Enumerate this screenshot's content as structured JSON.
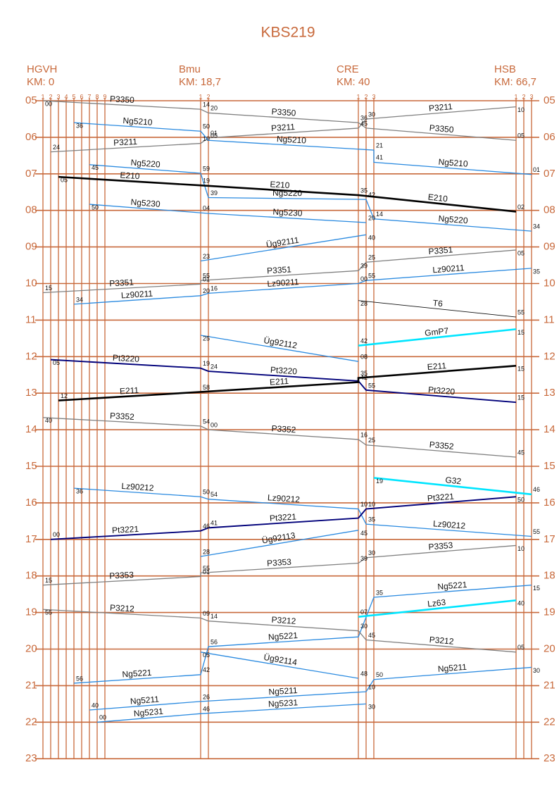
{
  "title": "KBS219",
  "hours": [
    "05",
    "06",
    "07",
    "08",
    "09",
    "10",
    "11",
    "12",
    "13",
    "14",
    "15",
    "16",
    "17",
    "18",
    "19",
    "20",
    "21",
    "22",
    "23"
  ],
  "stations": [
    {
      "name": "HGVH",
      "km": "KM: 0",
      "tracks": [
        "1",
        "2",
        "3",
        "4",
        "5",
        "6",
        "7",
        "8",
        "9"
      ]
    },
    {
      "name": "Bmu",
      "km": "KM: 18,7",
      "tracks": [
        "1",
        "2"
      ]
    },
    {
      "name": "CRE",
      "km": "KM: 40",
      "tracks": [
        "1",
        "2",
        "3"
      ]
    },
    {
      "name": "HSB",
      "km": "KM: 66,7",
      "tracks": [
        "1",
        "2",
        "3"
      ]
    }
  ],
  "trains": [
    {
      "name": "P3350",
      "color": "#808080",
      "points": [
        {
          "s": 0,
          "tr": 0,
          "h": 5,
          "m": 0,
          "label": "00"
        },
        {
          "s": 1,
          "tr": 0,
          "h": 5,
          "m": 14,
          "label": "14"
        },
        {
          "s": 1,
          "tr": 1,
          "h": 5,
          "m": 20,
          "label": "20"
        },
        {
          "s": 2,
          "tr": 0,
          "h": 5,
          "m": 36,
          "label": "36"
        },
        {
          "s": 2,
          "tr": 1,
          "h": 5,
          "m": 45
        },
        {
          "s": 3,
          "tr": 0,
          "h": 6,
          "m": 5,
          "label": "05"
        }
      ]
    },
    {
      "name": "P3211",
      "color": "#808080",
      "points": [
        {
          "s": 3,
          "tr": 0,
          "h": 5,
          "m": 10,
          "label": "10"
        },
        {
          "s": 2,
          "tr": 1,
          "h": 5,
          "m": 30,
          "label": "30"
        },
        {
          "s": 2,
          "tr": 0,
          "h": 5,
          "m": 45,
          "label": "45"
        },
        {
          "s": 1,
          "tr": 1,
          "h": 6,
          "m": 1,
          "label": "01"
        },
        {
          "s": 1,
          "tr": 0,
          "h": 6,
          "m": 10,
          "label": "10"
        },
        {
          "s": 0,
          "tr": 1,
          "h": 6,
          "m": 24,
          "label": "24"
        }
      ]
    },
    {
      "name": "Ng5210",
      "color": "#2a8ae0",
      "points": [
        {
          "s": 0,
          "tr": 4,
          "h": 5,
          "m": 36,
          "label": "36"
        },
        {
          "s": 1,
          "tr": 0,
          "h": 5,
          "m": 50,
          "label": "50"
        },
        {
          "s": 1,
          "tr": 1,
          "h": 6,
          "m": 5,
          "label": "05"
        },
        {
          "s": 2,
          "tr": 2,
          "h": 6,
          "m": 21,
          "label": "21"
        },
        {
          "s": 2,
          "tr": 2,
          "h": 6,
          "m": 41,
          "label": "41"
        },
        {
          "s": 3,
          "tr": 2,
          "h": 7,
          "m": 1,
          "label": "01"
        }
      ]
    },
    {
      "name": "Ng5220",
      "color": "#2a8ae0",
      "points": [
        {
          "s": 0,
          "tr": 6,
          "h": 6,
          "m": 45,
          "label": "45"
        },
        {
          "s": 1,
          "tr": 0,
          "h": 6,
          "m": 59,
          "label": "59"
        },
        {
          "s": 1,
          "tr": 1,
          "h": 7,
          "m": 39,
          "label": "39"
        },
        {
          "s": 2,
          "tr": 1,
          "h": 7,
          "m": 42,
          "label": "42"
        },
        {
          "s": 2,
          "tr": 2,
          "h": 8,
          "m": 14,
          "label": "14"
        },
        {
          "s": 3,
          "tr": 2,
          "h": 8,
          "m": 34,
          "label": "34"
        }
      ]
    },
    {
      "name": "E210",
      "color": "#000000",
      "points": [
        {
          "s": 0,
          "tr": 2,
          "h": 7,
          "m": 5,
          "label": "05"
        },
        {
          "s": 1,
          "tr": 0,
          "h": 7,
          "m": 19,
          "label": "19"
        },
        {
          "s": 2,
          "tr": 0,
          "h": 7,
          "m": 35,
          "label": "35"
        },
        {
          "s": 3,
          "tr": 0,
          "h": 8,
          "m": 2,
          "label": "02"
        }
      ]
    },
    {
      "name": "Ng5230",
      "color": "#2a8ae0",
      "points": [
        {
          "s": 0,
          "tr": 6,
          "h": 7,
          "m": 50,
          "label": "50"
        },
        {
          "s": 1,
          "tr": 0,
          "h": 8,
          "m": 4,
          "label": "04"
        },
        {
          "s": 1,
          "tr": 1,
          "h": 8,
          "m": 5
        },
        {
          "s": 2,
          "tr": 1,
          "h": 8,
          "m": 20,
          "label": "20"
        }
      ]
    },
    {
      "name": "Üg92111",
      "color": "#2a8ae0",
      "points": [
        {
          "s": 2,
          "tr": 1,
          "h": 8,
          "m": 40,
          "label": "40"
        },
        {
          "s": 1,
          "tr": 0,
          "h": 9,
          "m": 23,
          "label": "23"
        }
      ]
    },
    {
      "name": "P3351",
      "color": "#808080",
      "points": [
        {
          "s": 3,
          "tr": 0,
          "h": 9,
          "m": 5,
          "label": "05"
        },
        {
          "s": 2,
          "tr": 1,
          "h": 9,
          "m": 25,
          "label": "25"
        },
        {
          "s": 2,
          "tr": 0,
          "h": 9,
          "m": 39,
          "label": "39"
        },
        {
          "s": 1,
          "tr": 0,
          "h": 9,
          "m": 55,
          "label": "55"
        },
        {
          "s": 1,
          "tr": 0,
          "h": 10,
          "m": 1,
          "label": "01"
        },
        {
          "s": 0,
          "tr": 0,
          "h": 10,
          "m": 15,
          "label": "15"
        }
      ]
    },
    {
      "name": "Lz90211",
      "color": "#2a8ae0",
      "points": [
        {
          "s": 3,
          "tr": 2,
          "h": 9,
          "m": 35,
          "label": "35"
        },
        {
          "s": 2,
          "tr": 1,
          "h": 9,
          "m": 55,
          "label": "55"
        },
        {
          "s": 2,
          "tr": 0,
          "h": 10,
          "m": 0,
          "label": "00"
        },
        {
          "s": 1,
          "tr": 1,
          "h": 10,
          "m": 16,
          "label": "16"
        },
        {
          "s": 1,
          "tr": 0,
          "h": 10,
          "m": 20,
          "label": "20"
        },
        {
          "s": 0,
          "tr": 4,
          "h": 10,
          "m": 34,
          "label": "34"
        }
      ]
    },
    {
      "name": "T6",
      "color": "#111111",
      "points": [
        {
          "s": 2,
          "tr": 0,
          "h": 10,
          "m": 28,
          "label": "28"
        },
        {
          "s": 3,
          "tr": 0,
          "h": 10,
          "m": 55,
          "label": "55"
        }
      ]
    },
    {
      "name": "Üg92112",
      "color": "#2a8ae0",
      "points": [
        {
          "s": 1,
          "tr": 0,
          "h": 11,
          "m": 25,
          "label": "25"
        },
        {
          "s": 2,
          "tr": 0,
          "h": 12,
          "m": 8,
          "label": "08"
        }
      ]
    },
    {
      "name": "GmP7",
      "color": "#00e5ff",
      "points": [
        {
          "s": 3,
          "tr": 0,
          "h": 11,
          "m": 15,
          "label": "15"
        },
        {
          "s": 2,
          "tr": 0,
          "h": 11,
          "m": 42,
          "label": "42"
        }
      ]
    },
    {
      "name": "Pt3220",
      "color": "#00007a",
      "points": [
        {
          "s": 0,
          "tr": 1,
          "h": 12,
          "m": 5,
          "label": "05"
        },
        {
          "s": 1,
          "tr": 0,
          "h": 12,
          "m": 19,
          "label": "19"
        },
        {
          "s": 1,
          "tr": 1,
          "h": 12,
          "m": 24,
          "label": "24"
        },
        {
          "s": 2,
          "tr": 0,
          "h": 12,
          "m": 40
        },
        {
          "s": 2,
          "tr": 1,
          "h": 12,
          "m": 55,
          "label": "55"
        },
        {
          "s": 3,
          "tr": 0,
          "h": 13,
          "m": 15,
          "label": "15"
        }
      ]
    },
    {
      "name": "E211",
      "color": "#000000",
      "points": [
        {
          "s": 3,
          "tr": 0,
          "h": 12,
          "m": 15,
          "label": "15"
        },
        {
          "s": 2,
          "tr": 0,
          "h": 12,
          "m": 35,
          "label": "35"
        },
        {
          "s": 2,
          "tr": 0,
          "h": 12,
          "m": 42,
          "label": "42"
        },
        {
          "s": 1,
          "tr": 0,
          "h": 12,
          "m": 58,
          "label": "58"
        },
        {
          "s": 0,
          "tr": 2,
          "h": 13,
          "m": 12,
          "label": "12"
        }
      ]
    },
    {
      "name": "P3352",
      "color": "#808080",
      "points": [
        {
          "s": 0,
          "tr": 0,
          "h": 13,
          "m": 40,
          "label": "40"
        },
        {
          "s": 1,
          "tr": 0,
          "h": 13,
          "m": 54,
          "label": "54"
        },
        {
          "s": 1,
          "tr": 1,
          "h": 14,
          "m": 0,
          "label": "00"
        },
        {
          "s": 2,
          "tr": 0,
          "h": 14,
          "m": 16,
          "label": "16"
        },
        {
          "s": 2,
          "tr": 1,
          "h": 14,
          "m": 25,
          "label": "25"
        },
        {
          "s": 3,
          "tr": 0,
          "h": 14,
          "m": 45,
          "label": "45"
        }
      ]
    },
    {
      "name": "G32",
      "color": "#00e5ff",
      "points": [
        {
          "s": 2,
          "tr": 2,
          "h": 15,
          "m": 19,
          "label": "19"
        },
        {
          "s": 3,
          "tr": 2,
          "h": 15,
          "m": 46,
          "label": "46"
        }
      ]
    },
    {
      "name": "Lz90212",
      "color": "#2a8ae0",
      "points": [
        {
          "s": 0,
          "tr": 4,
          "h": 15,
          "m": 36,
          "label": "36"
        },
        {
          "s": 1,
          "tr": 0,
          "h": 15,
          "m": 50,
          "label": "50"
        },
        {
          "s": 1,
          "tr": 1,
          "h": 15,
          "m": 54,
          "label": "54"
        },
        {
          "s": 2,
          "tr": 0,
          "h": 16,
          "m": 10,
          "label": "10"
        },
        {
          "s": 2,
          "tr": 1,
          "h": 16,
          "m": 35,
          "label": "35"
        },
        {
          "s": 3,
          "tr": 2,
          "h": 16,
          "m": 55,
          "label": "55"
        }
      ]
    },
    {
      "name": "Pt3221",
      "color": "#00007a",
      "points": [
        {
          "s": 3,
          "tr": 0,
          "h": 15,
          "m": 50,
          "label": "50"
        },
        {
          "s": 2,
          "tr": 1,
          "h": 16,
          "m": 10,
          "label": "10"
        },
        {
          "s": 2,
          "tr": 0,
          "h": 16,
          "m": 25
        },
        {
          "s": 1,
          "tr": 1,
          "h": 16,
          "m": 41,
          "label": "41"
        },
        {
          "s": 1,
          "tr": 0,
          "h": 16,
          "m": 46,
          "label": "46"
        },
        {
          "s": 0,
          "tr": 1,
          "h": 17,
          "m": 0,
          "label": "00"
        }
      ]
    },
    {
      "name": "Üg92113",
      "color": "#2a8ae0",
      "points": [
        {
          "s": 2,
          "tr": 0,
          "h": 16,
          "m": 45,
          "label": "45"
        },
        {
          "s": 1,
          "tr": 0,
          "h": 17,
          "m": 28,
          "label": "28"
        }
      ]
    },
    {
      "name": "P3353",
      "color": "#808080",
      "points": [
        {
          "s": 3,
          "tr": 0,
          "h": 17,
          "m": 10,
          "label": "10"
        },
        {
          "s": 2,
          "tr": 1,
          "h": 17,
          "m": 30,
          "label": "30"
        },
        {
          "s": 2,
          "tr": 0,
          "h": 17,
          "m": 39,
          "label": "39"
        },
        {
          "s": 1,
          "tr": 0,
          "h": 17,
          "m": 55,
          "label": "55"
        },
        {
          "s": 1,
          "tr": 0,
          "h": 18,
          "m": 1,
          "label": "01"
        },
        {
          "s": 0,
          "tr": 0,
          "h": 18,
          "m": 15,
          "label": "15"
        }
      ]
    },
    {
      "name": "Ng5221",
      "color": "#2a8ae0",
      "points": [
        {
          "s": 3,
          "tr": 2,
          "h": 18,
          "m": 15,
          "label": "15"
        },
        {
          "s": 2,
          "tr": 2,
          "h": 18,
          "m": 35,
          "label": "35"
        },
        {
          "s": 2,
          "tr": 0,
          "h": 19,
          "m": 40
        },
        {
          "s": 1,
          "tr": 1,
          "h": 19,
          "m": 56,
          "label": "56"
        },
        {
          "s": 1,
          "tr": 0,
          "h": 20,
          "m": 42,
          "label": "42"
        },
        {
          "s": 0,
          "tr": 4,
          "h": 20,
          "m": 56,
          "label": "56"
        }
      ]
    },
    {
      "name": "Lz63",
      "color": "#00e5ff",
      "points": [
        {
          "s": 3,
          "tr": 0,
          "h": 18,
          "m": 40,
          "label": "40"
        },
        {
          "s": 2,
          "tr": 0,
          "h": 19,
          "m": 7,
          "label": "07"
        }
      ]
    },
    {
      "name": "P3212",
      "color": "#808080",
      "points": [
        {
          "s": 0,
          "tr": 0,
          "h": 18,
          "m": 55,
          "label": "55"
        },
        {
          "s": 1,
          "tr": 0,
          "h": 19,
          "m": 9,
          "label": "09"
        },
        {
          "s": 1,
          "tr": 1,
          "h": 19,
          "m": 14,
          "label": "14"
        },
        {
          "s": 2,
          "tr": 0,
          "h": 19,
          "m": 30,
          "label": "30"
        },
        {
          "s": 2,
          "tr": 1,
          "h": 19,
          "m": 45,
          "label": "45"
        },
        {
          "s": 3,
          "tr": 0,
          "h": 20,
          "m": 5,
          "label": "05"
        }
      ]
    },
    {
      "name": "Üg92114",
      "color": "#2a8ae0",
      "points": [
        {
          "s": 1,
          "tr": 0,
          "h": 20,
          "m": 5,
          "label": "05"
        },
        {
          "s": 2,
          "tr": 0,
          "h": 20,
          "m": 48,
          "label": "48"
        }
      ]
    },
    {
      "name": "Ng5211",
      "color": "#2a8ae0",
      "points": [
        {
          "s": 3,
          "tr": 2,
          "h": 20,
          "m": 30,
          "label": "30"
        },
        {
          "s": 2,
          "tr": 2,
          "h": 20,
          "m": 50,
          "label": "50"
        },
        {
          "s": 2,
          "tr": 1,
          "h": 21,
          "m": 10,
          "label": "10"
        },
        {
          "s": 1,
          "tr": 0,
          "h": 21,
          "m": 26,
          "label": "26"
        },
        {
          "s": 0,
          "tr": 6,
          "h": 21,
          "m": 40,
          "label": "40"
        }
      ]
    },
    {
      "name": "Ng5231",
      "color": "#2a8ae0",
      "points": [
        {
          "s": 2,
          "tr": 1,
          "h": 21,
          "m": 30,
          "label": "30"
        },
        {
          "s": 1,
          "tr": 0,
          "h": 21,
          "m": 46,
          "label": "46"
        },
        {
          "s": 0,
          "tr": 7,
          "h": 22,
          "m": 0,
          "label": "00"
        }
      ]
    }
  ]
}
